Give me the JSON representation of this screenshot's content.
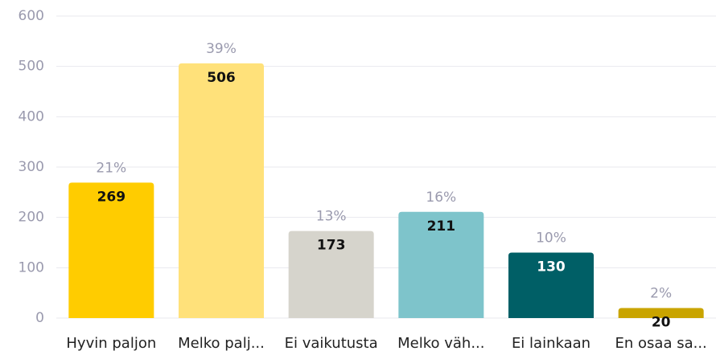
{
  "chart_data": {
    "type": "bar",
    "categories": [
      "Hyvin paljon",
      "Melko palj...",
      "Ei vaikutusta",
      "Melko väh...",
      "Ei lainkaan",
      "En osaa sa..."
    ],
    "values": [
      269,
      506,
      173,
      211,
      130,
      20
    ],
    "colors": [
      "#ffcc00",
      "#ffe17a",
      "#d6d4cc",
      "#7ec4cb",
      "#005f66",
      "#c9a400"
    ],
    "percentages": {
      "values": [
        21,
        39,
        13,
        16,
        10,
        2
      ],
      "value_labels": [
        "21%",
        "39%",
        "13%",
        "16%",
        "10%",
        "2%"
      ]
    },
    "ylim": [
      0,
      600
    ],
    "yticks": [
      0,
      100,
      200,
      300,
      400,
      500,
      600
    ],
    "grid": true
  }
}
